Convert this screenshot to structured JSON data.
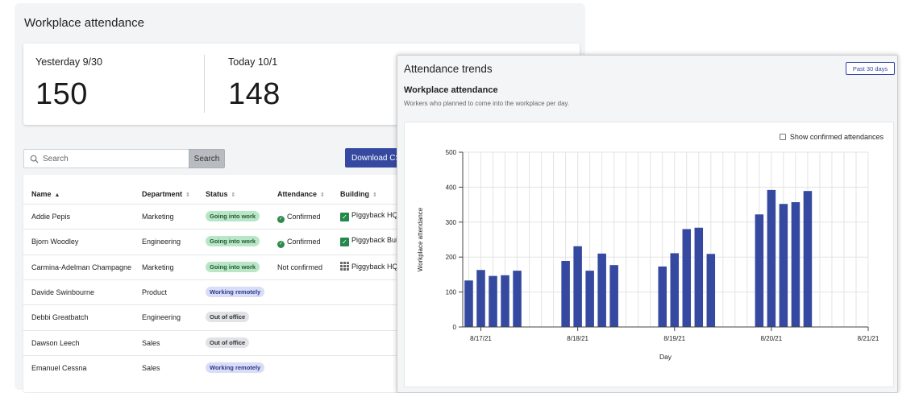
{
  "page": {
    "title": "Workplace attendance"
  },
  "stats": {
    "yesterday": {
      "label": "Yesterday 9/30",
      "value": "150"
    },
    "today": {
      "label": "Today 10/1",
      "value": "148"
    }
  },
  "search": {
    "placeholder": "Search",
    "button_label": "Search"
  },
  "download_label": "Download CS",
  "table": {
    "headers": [
      "Name",
      "Department",
      "Status",
      "Attendance",
      "Building"
    ],
    "rows": [
      {
        "name": "Addie Pepis",
        "department": "Marketing",
        "status": "Going into work",
        "status_color": "green",
        "attendance": "Confirmed",
        "confirmed": true,
        "building": "Piggyback HQ",
        "building_icon": "check"
      },
      {
        "name": "Bjorn Woodley",
        "department": "Engineering",
        "status": "Going into work",
        "status_color": "green",
        "attendance": "Confirmed",
        "confirmed": true,
        "building": "Piggyback Bui",
        "building_icon": "check"
      },
      {
        "name": "Carmina-Adelman Champagne",
        "department": "Marketing",
        "status": "Going into work",
        "status_color": "green",
        "attendance": "Not confirmed",
        "confirmed": false,
        "building": "Piggyback HQ",
        "building_icon": "grid"
      },
      {
        "name": "Davide Swinbourne",
        "department": "Product",
        "status": "Working remotely",
        "status_color": "blue",
        "attendance": "",
        "confirmed": false,
        "building": "",
        "building_icon": ""
      },
      {
        "name": "Debbi Greatbatch",
        "department": "Engineering",
        "status": "Out of office",
        "status_color": "gray",
        "attendance": "",
        "confirmed": false,
        "building": "",
        "building_icon": ""
      },
      {
        "name": "Dawson Leech",
        "department": "Sales",
        "status": "Out of office",
        "status_color": "gray",
        "attendance": "",
        "confirmed": false,
        "building": "",
        "building_icon": ""
      },
      {
        "name": "Emanuel Cessna",
        "department": "Sales",
        "status": "Working remotely",
        "status_color": "blue",
        "attendance": "",
        "confirmed": false,
        "building": "",
        "building_icon": ""
      }
    ]
  },
  "trends": {
    "title": "Attendance trends",
    "period_label": "Past 30 days",
    "section_title": "Workplace attendance",
    "section_subtitle": "Workers who planned to come into the workplace per day.",
    "show_confirmed_label": "Show confirmed attendances"
  },
  "chart_data": {
    "type": "bar",
    "xlabel": "Day",
    "ylabel": "Workplace attendance",
    "ylim": [
      0,
      500
    ],
    "yticks": [
      0,
      100,
      200,
      300,
      400,
      500
    ],
    "xticks": [
      {
        "label": "8/17/21",
        "x": 0
      },
      {
        "label": "8/18/21",
        "x": 8
      },
      {
        "label": "8/19/21",
        "x": 16
      },
      {
        "label": "8/20/21",
        "x": 24
      },
      {
        "label": "8/21/21",
        "x": 32
      }
    ],
    "xlim": [
      -1.5,
      32
    ],
    "grid": true,
    "bars": [
      {
        "x": -1,
        "value": 133
      },
      {
        "x": 0,
        "value": 163
      },
      {
        "x": 1,
        "value": 146
      },
      {
        "x": 2,
        "value": 148
      },
      {
        "x": 3,
        "value": 161
      },
      {
        "x": 7,
        "value": 189
      },
      {
        "x": 8,
        "value": 231
      },
      {
        "x": 9,
        "value": 161
      },
      {
        "x": 10,
        "value": 210
      },
      {
        "x": 11,
        "value": 177
      },
      {
        "x": 15,
        "value": 173
      },
      {
        "x": 16,
        "value": 211
      },
      {
        "x": 17,
        "value": 280
      },
      {
        "x": 18,
        "value": 284
      },
      {
        "x": 19,
        "value": 209
      },
      {
        "x": 23,
        "value": 322
      },
      {
        "x": 24,
        "value": 392
      },
      {
        "x": 25,
        "value": 352
      },
      {
        "x": 26,
        "value": 357
      },
      {
        "x": 27,
        "value": 389
      }
    ],
    "bar_color": "#3549a0"
  }
}
